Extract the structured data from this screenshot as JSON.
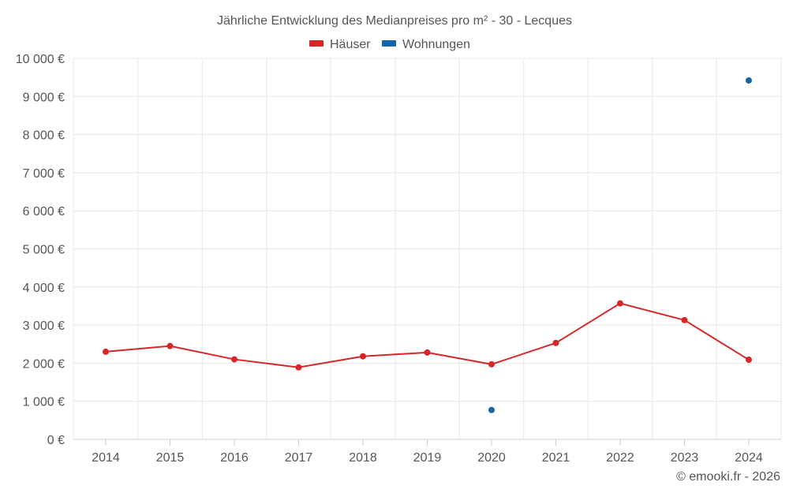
{
  "chart_data": {
    "type": "line",
    "title": "Jährliche Entwicklung des Medianpreises pro m² - 30 - Lecques",
    "categories": [
      "2014",
      "2015",
      "2016",
      "2017",
      "2018",
      "2019",
      "2020",
      "2021",
      "2022",
      "2023",
      "2024"
    ],
    "series": [
      {
        "name": "Häuser",
        "color": "#d62728",
        "values": [
          2300,
          2450,
          2100,
          1890,
          2180,
          2280,
          1970,
          2530,
          3570,
          3130,
          2090
        ]
      },
      {
        "name": "Wohnungen",
        "color": "#1565a8",
        "values": [
          null,
          null,
          null,
          null,
          null,
          null,
          770,
          null,
          null,
          null,
          9420
        ]
      }
    ],
    "ylim": [
      0,
      10000
    ],
    "yticks": [
      "0 €",
      "1 000 €",
      "2 000 €",
      "3 000 €",
      "4 000 €",
      "5 000 €",
      "6 000 €",
      "7 000 €",
      "8 000 €",
      "9 000 €",
      "10 000 €"
    ],
    "ytick_values": [
      0,
      1000,
      2000,
      3000,
      4000,
      5000,
      6000,
      7000,
      8000,
      9000,
      10000
    ],
    "grid": true,
    "legend_position": "top-center",
    "credit": "© emooki.fr - 2026"
  }
}
